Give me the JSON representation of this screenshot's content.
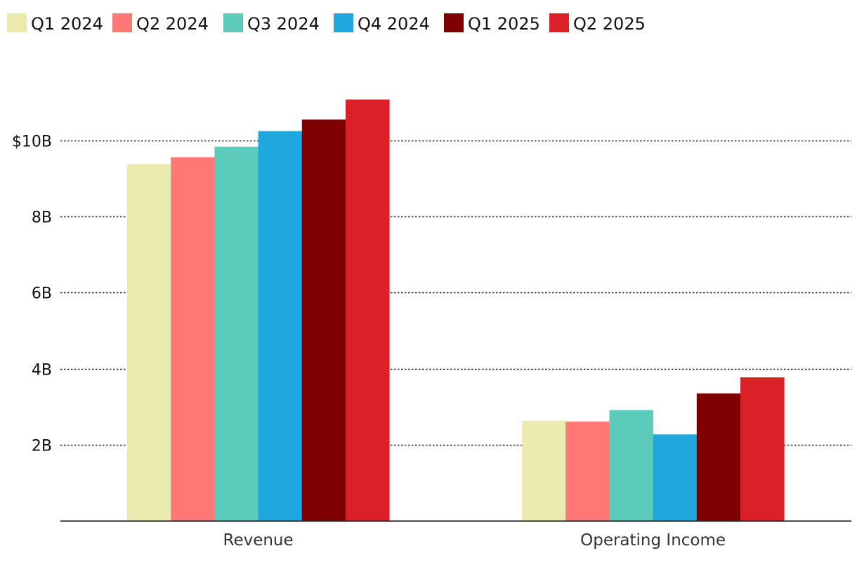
{
  "chart_data": {
    "type": "bar",
    "title": "",
    "xlabel": "",
    "ylabel": "",
    "categories": [
      "Revenue",
      "Operating Income"
    ],
    "series": [
      {
        "name": "Q1 2024",
        "color": "#ebebb0",
        "values": [
          9.38,
          2.63
        ]
      },
      {
        "name": "Q2 2024",
        "color": "#ff7875",
        "values": [
          9.56,
          2.61
        ]
      },
      {
        "name": "Q3 2024",
        "color": "#5ccbbb",
        "values": [
          9.84,
          2.91
        ]
      },
      {
        "name": "Q4 2024",
        "color": "#1fa8df",
        "values": [
          10.25,
          2.27
        ]
      },
      {
        "name": "Q1 2025",
        "color": "#7f0000",
        "values": [
          10.55,
          3.35
        ]
      },
      {
        "name": "Q2 2025",
        "color": "#db2127",
        "values": [
          11.08,
          3.77
        ]
      }
    ],
    "ylim": [
      0,
      12.5
    ],
    "yticks": [
      {
        "value": 2,
        "label": "2B"
      },
      {
        "value": 4,
        "label": "4B"
      },
      {
        "value": 6,
        "label": "6B"
      },
      {
        "value": 8,
        "label": "8B"
      },
      {
        "value": 10,
        "label": "$10B"
      }
    ],
    "grid": true,
    "grid_style": "dotted",
    "legend_position": "top-left"
  }
}
